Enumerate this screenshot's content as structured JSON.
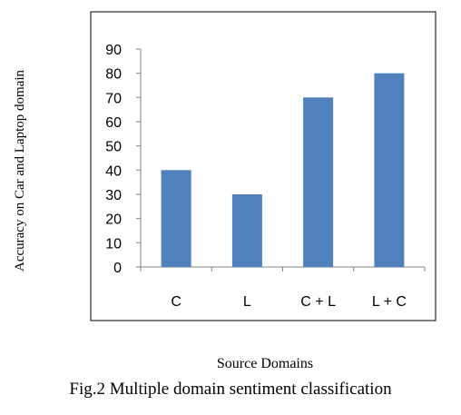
{
  "caption": "Fig.2 Multiple domain sentiment classification",
  "chart_data": {
    "type": "bar",
    "categories": [
      "C",
      "L",
      "C + L",
      "L + C"
    ],
    "values": [
      40,
      30,
      70,
      80
    ],
    "xlabel": "Source Domains",
    "ylabel": "Accuracy on Car and Laptop domain",
    "ylim": [
      0,
      90
    ],
    "yticks": [
      0,
      10,
      20,
      30,
      40,
      50,
      60,
      70,
      80,
      90
    ],
    "bar_color": "#4f81bd",
    "grid": false,
    "legend": "none"
  }
}
